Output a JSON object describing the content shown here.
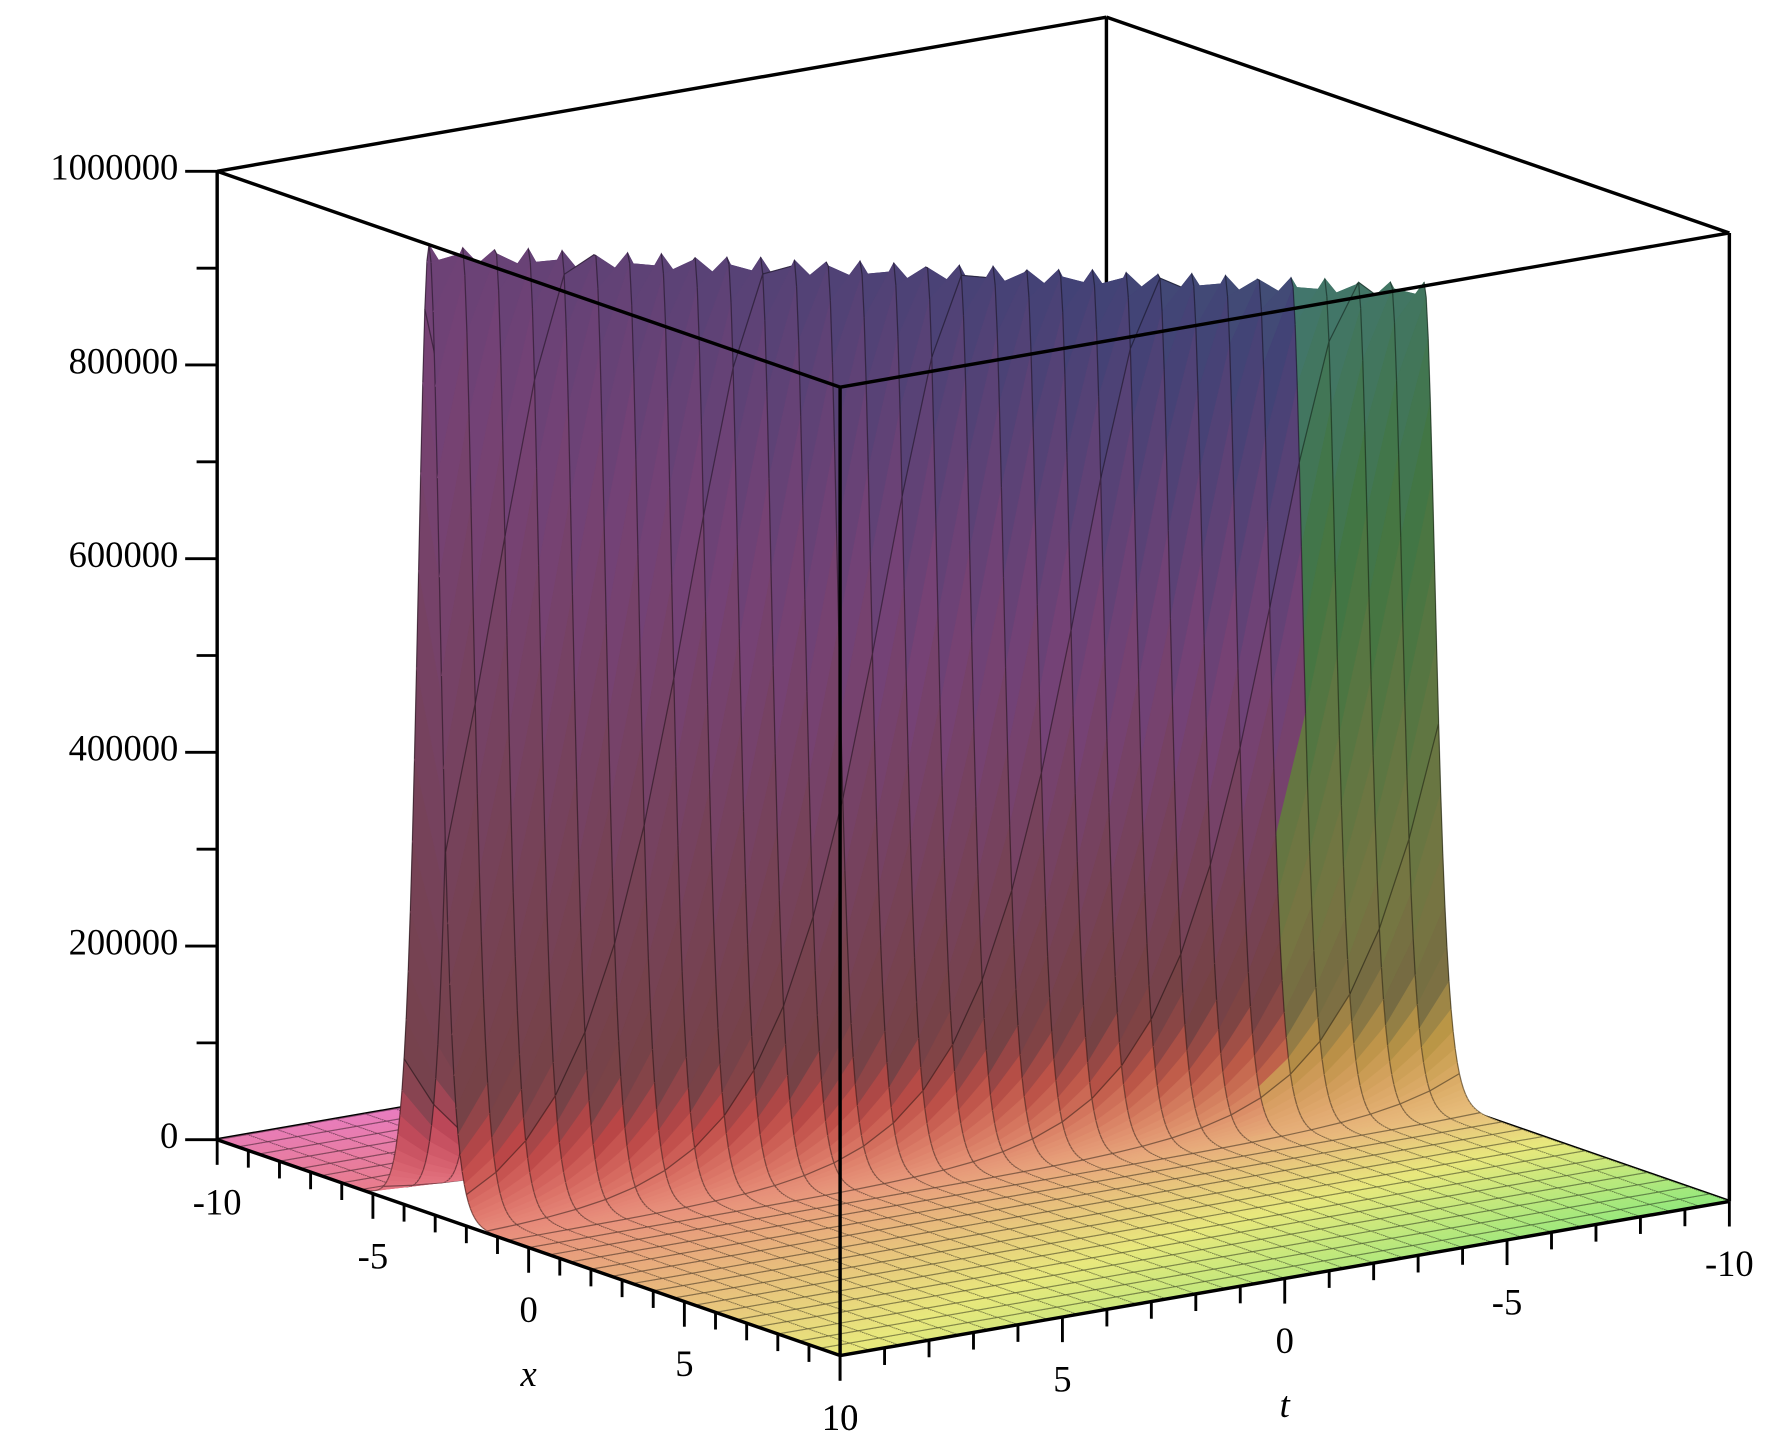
{
  "chart_data": {
    "type": "surface3d",
    "xlabel": "x",
    "tlabel": "t",
    "xlim": [
      -10,
      10
    ],
    "xticks": [
      -10,
      -5,
      0,
      5,
      10
    ],
    "tlim": [
      -10,
      10
    ],
    "tticks": [
      -10,
      -5,
      0,
      5,
      10
    ],
    "zlim": [
      0,
      1000000
    ],
    "zticks": [
      0,
      200000,
      400000,
      600000,
      800000,
      1000000
    ],
    "surface": {
      "t": [
        -10,
        -5,
        0,
        5,
        10
      ],
      "ridge_x": [
        0.2,
        -0.65,
        -1.5,
        -2.35,
        -3.2
      ],
      "peak": [
        840000,
        880000,
        920000,
        960000,
        1000000
      ],
      "width": 0.5
    },
    "mesh": true
  }
}
